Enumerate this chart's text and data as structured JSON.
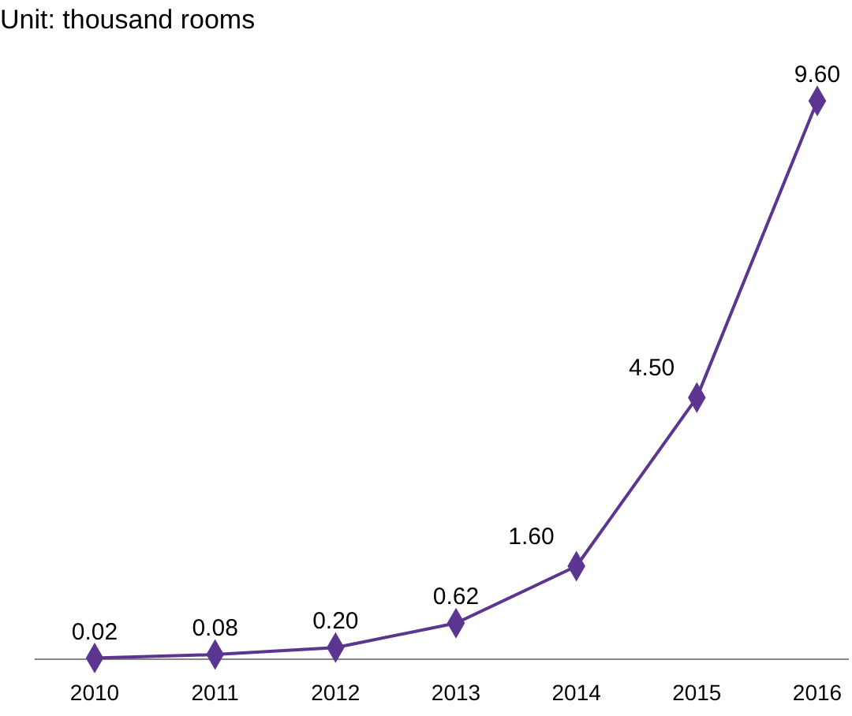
{
  "chart_data": {
    "type": "line",
    "title": "Unit: thousand rooms",
    "categories": [
      "2010",
      "2011",
      "2012",
      "2013",
      "2014",
      "2015",
      "2016"
    ],
    "series": [
      {
        "color": "#5b3590",
        "values": [
          0.02,
          0.08,
          0.2,
          0.62,
          1.6,
          4.5,
          9.6
        ],
        "value_labels": [
          "0.02",
          "0.08",
          "0.20",
          "0.62",
          "1.60",
          "4.50",
          "9.60"
        ]
      }
    ],
    "marker": "diamond",
    "line_style": "solid"
  }
}
